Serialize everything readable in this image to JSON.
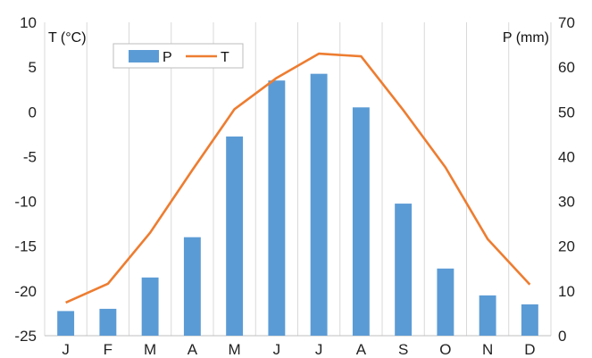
{
  "chart_data": {
    "type": "bar+line",
    "categories": [
      "J",
      "F",
      "M",
      "A",
      "M",
      "J",
      "J",
      "A",
      "S",
      "O",
      "N",
      "D"
    ],
    "series": [
      {
        "name": "P",
        "type": "bar",
        "axis": "right",
        "color": "#5b9bd5",
        "values": [
          5.5,
          6,
          13,
          22,
          44.5,
          57,
          58.5,
          51,
          29.5,
          15,
          9,
          7
        ]
      },
      {
        "name": "T",
        "type": "line",
        "axis": "left",
        "color": "#ed7d31",
        "values": [
          -21.3,
          -19.2,
          -13.5,
          -6.5,
          0.3,
          3.8,
          6.5,
          6.2,
          0.2,
          -6.2,
          -14.2,
          -19.3
        ]
      }
    ],
    "y_left": {
      "label": "T (°C)",
      "min": -25,
      "max": 10,
      "ticks": [
        "10",
        "5",
        "0",
        "-5",
        "-10",
        "-15",
        "-20",
        "-25"
      ]
    },
    "y_right": {
      "label": "P (mm)",
      "min": 0,
      "max": 70,
      "ticks": [
        "70",
        "60",
        "50",
        "40",
        "30",
        "20",
        "10",
        "0"
      ]
    },
    "grid": "vertical",
    "legend": "top-left"
  }
}
